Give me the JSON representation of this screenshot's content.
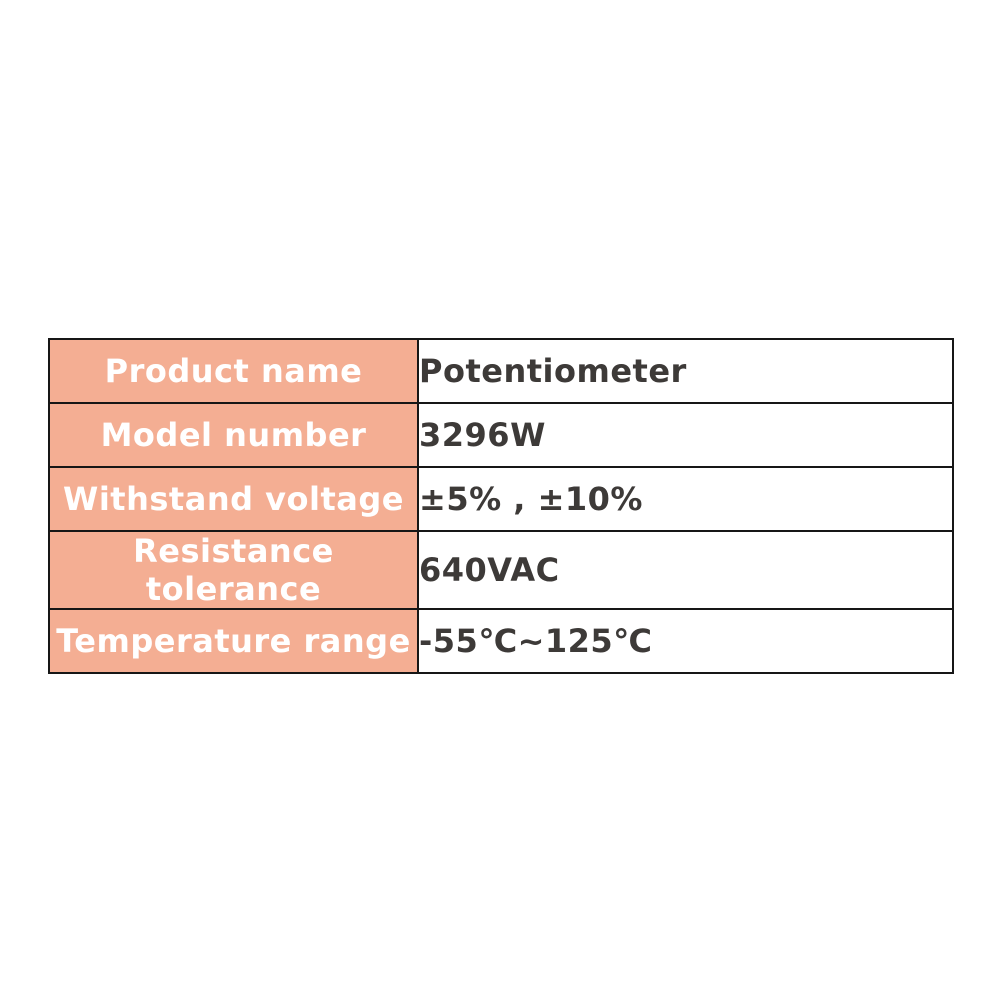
{
  "table": {
    "rows": [
      {
        "label": "Product name",
        "value": "Potentiometer"
      },
      {
        "label": "Model number",
        "value": "3296W"
      },
      {
        "label": "Withstand voltage",
        "value": "±5% , ±10%"
      },
      {
        "label": "Resistance tolerance",
        "value": "640VAC"
      },
      {
        "label": "Temperature range",
        "value": "-55℃~125℃"
      }
    ],
    "colors": {
      "label_background": "#f4ae93",
      "label_text": "#ffffff",
      "value_text": "#3d3a38",
      "border": "#161616",
      "page_background": "#ffffff"
    }
  }
}
